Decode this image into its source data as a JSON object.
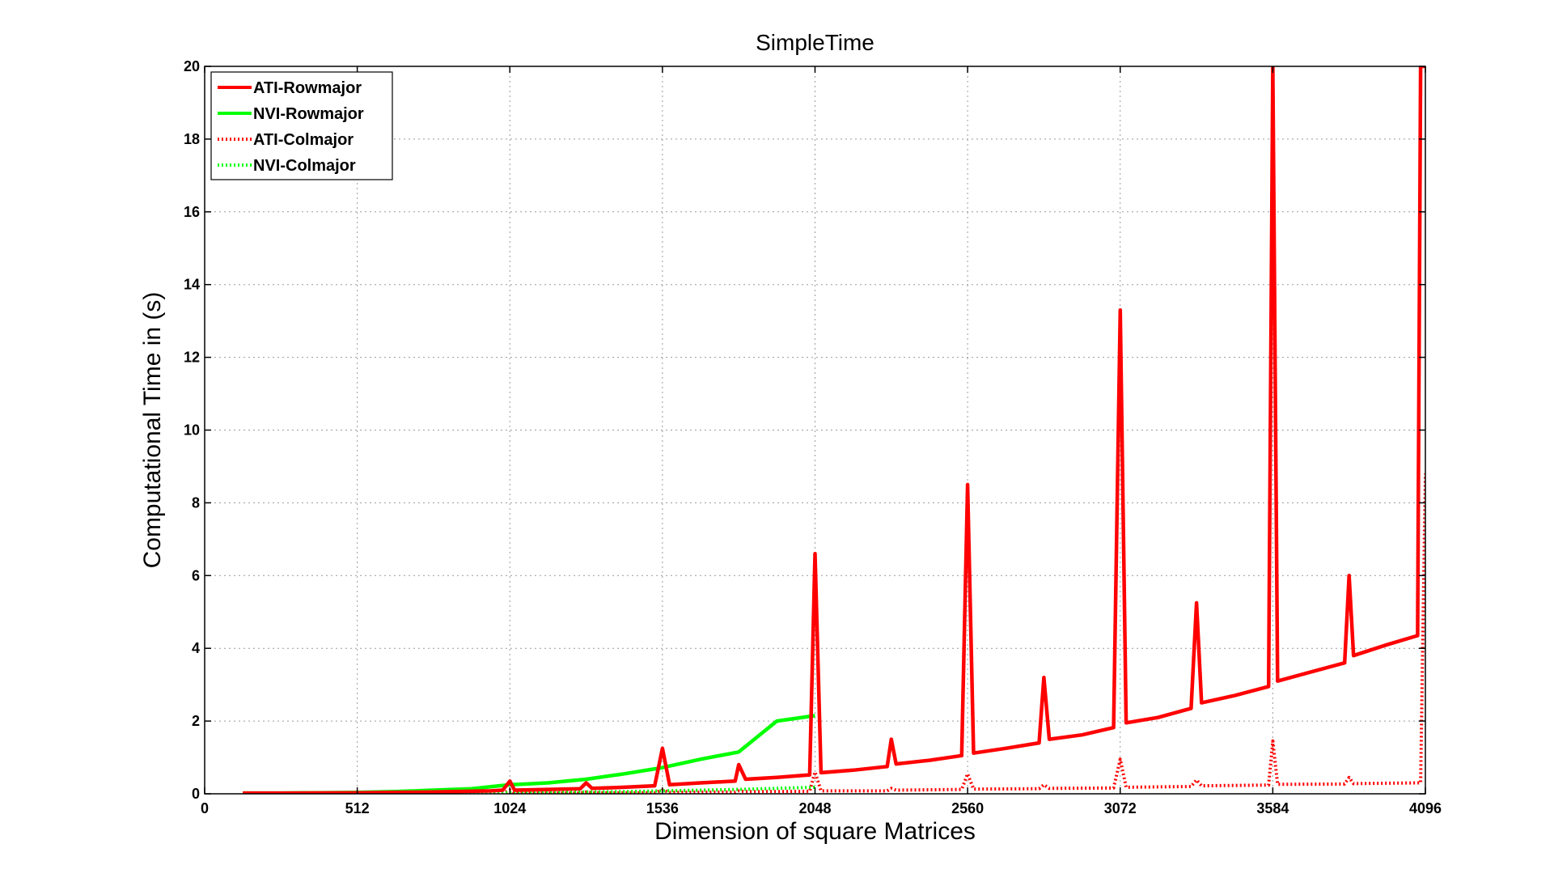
{
  "chart_data": {
    "type": "line",
    "title": "SimpleTime",
    "xlabel": "Dimension of square Matrices",
    "ylabel": "Computational Time in (s)",
    "xlim": [
      0,
      4096
    ],
    "ylim": [
      0,
      20
    ],
    "xticks": [
      0,
      512,
      1024,
      1536,
      2048,
      2560,
      3072,
      3584,
      4096
    ],
    "yticks": [
      0,
      2,
      4,
      6,
      8,
      10,
      12,
      14,
      16,
      18,
      20
    ],
    "grid": true,
    "legend_position": "top-left",
    "series": [
      {
        "name": "ATI-Rowmajor",
        "color": "#ff0000",
        "style": "solid",
        "points": [
          [
            128,
            0.02
          ],
          [
            256,
            0.02
          ],
          [
            512,
            0.03
          ],
          [
            768,
            0.05
          ],
          [
            960,
            0.08
          ],
          [
            1000,
            0.1
          ],
          [
            1024,
            0.35
          ],
          [
            1040,
            0.1
          ],
          [
            1152,
            0.12
          ],
          [
            1260,
            0.14
          ],
          [
            1280,
            0.3
          ],
          [
            1300,
            0.15
          ],
          [
            1408,
            0.18
          ],
          [
            1510,
            0.22
          ],
          [
            1536,
            1.25
          ],
          [
            1560,
            0.25
          ],
          [
            1664,
            0.3
          ],
          [
            1780,
            0.35
          ],
          [
            1792,
            0.8
          ],
          [
            1815,
            0.4
          ],
          [
            1920,
            0.45
          ],
          [
            2030,
            0.52
          ],
          [
            2048,
            6.6
          ],
          [
            2068,
            0.58
          ],
          [
            2176,
            0.65
          ],
          [
            2290,
            0.75
          ],
          [
            2304,
            1.5
          ],
          [
            2320,
            0.82
          ],
          [
            2432,
            0.92
          ],
          [
            2540,
            1.05
          ],
          [
            2560,
            8.5
          ],
          [
            2580,
            1.12
          ],
          [
            2688,
            1.25
          ],
          [
            2800,
            1.4
          ],
          [
            2816,
            3.2
          ],
          [
            2834,
            1.5
          ],
          [
            2944,
            1.62
          ],
          [
            3050,
            1.82
          ],
          [
            3072,
            13.3
          ],
          [
            3092,
            1.95
          ],
          [
            3200,
            2.1
          ],
          [
            3310,
            2.35
          ],
          [
            3328,
            5.25
          ],
          [
            3345,
            2.5
          ],
          [
            3456,
            2.7
          ],
          [
            3570,
            2.95
          ],
          [
            3584,
            20
          ],
          [
            3600,
            3.1
          ],
          [
            3712,
            3.35
          ],
          [
            3825,
            3.6
          ],
          [
            3840,
            6.0
          ],
          [
            3855,
            3.8
          ],
          [
            3968,
            4.1
          ],
          [
            4070,
            4.35
          ],
          [
            4080,
            20
          ],
          [
            4096,
            20
          ]
        ]
      },
      {
        "name": "NVI-Rowmajor",
        "color": "#00ff00",
        "style": "solid",
        "points": [
          [
            128,
            0.02
          ],
          [
            256,
            0.02
          ],
          [
            384,
            0.03
          ],
          [
            512,
            0.04
          ],
          [
            640,
            0.06
          ],
          [
            768,
            0.1
          ],
          [
            896,
            0.14
          ],
          [
            1024,
            0.25
          ],
          [
            1152,
            0.3
          ],
          [
            1280,
            0.4
          ],
          [
            1408,
            0.55
          ],
          [
            1536,
            0.72
          ],
          [
            1664,
            0.95
          ],
          [
            1792,
            1.15
          ],
          [
            1920,
            2.0
          ],
          [
            2048,
            2.15
          ]
        ]
      },
      {
        "name": "ATI-Colmajor",
        "color": "#ff0000",
        "style": "dotted",
        "points": [
          [
            128,
            0.02
          ],
          [
            512,
            0.02
          ],
          [
            1000,
            0.02
          ],
          [
            1024,
            0.1
          ],
          [
            1040,
            0.02
          ],
          [
            1260,
            0.02
          ],
          [
            1280,
            0.05
          ],
          [
            1300,
            0.03
          ],
          [
            1510,
            0.03
          ],
          [
            1536,
            0.1
          ],
          [
            1560,
            0.04
          ],
          [
            1780,
            0.05
          ],
          [
            1792,
            0.08
          ],
          [
            1815,
            0.06
          ],
          [
            2030,
            0.07
          ],
          [
            2048,
            0.6
          ],
          [
            2068,
            0.08
          ],
          [
            2290,
            0.08
          ],
          [
            2304,
            0.15
          ],
          [
            2320,
            0.1
          ],
          [
            2540,
            0.12
          ],
          [
            2560,
            0.55
          ],
          [
            2580,
            0.13
          ],
          [
            2800,
            0.14
          ],
          [
            2816,
            0.25
          ],
          [
            2834,
            0.15
          ],
          [
            3050,
            0.16
          ],
          [
            3072,
            0.95
          ],
          [
            3092,
            0.18
          ],
          [
            3310,
            0.2
          ],
          [
            3328,
            0.38
          ],
          [
            3345,
            0.22
          ],
          [
            3570,
            0.24
          ],
          [
            3584,
            1.45
          ],
          [
            3600,
            0.26
          ],
          [
            3825,
            0.27
          ],
          [
            3840,
            0.45
          ],
          [
            3855,
            0.28
          ],
          [
            4070,
            0.3
          ],
          [
            4080,
            0.3
          ],
          [
            4096,
            8.8
          ]
        ]
      },
      {
        "name": "NVI-Colmajor",
        "color": "#00ff00",
        "style": "dotted",
        "points": [
          [
            128,
            0.02
          ],
          [
            384,
            0.02
          ],
          [
            640,
            0.02
          ],
          [
            896,
            0.03
          ],
          [
            1152,
            0.04
          ],
          [
            1408,
            0.06
          ],
          [
            1664,
            0.1
          ],
          [
            1792,
            0.12
          ],
          [
            1920,
            0.15
          ],
          [
            2048,
            0.18
          ]
        ]
      }
    ]
  }
}
